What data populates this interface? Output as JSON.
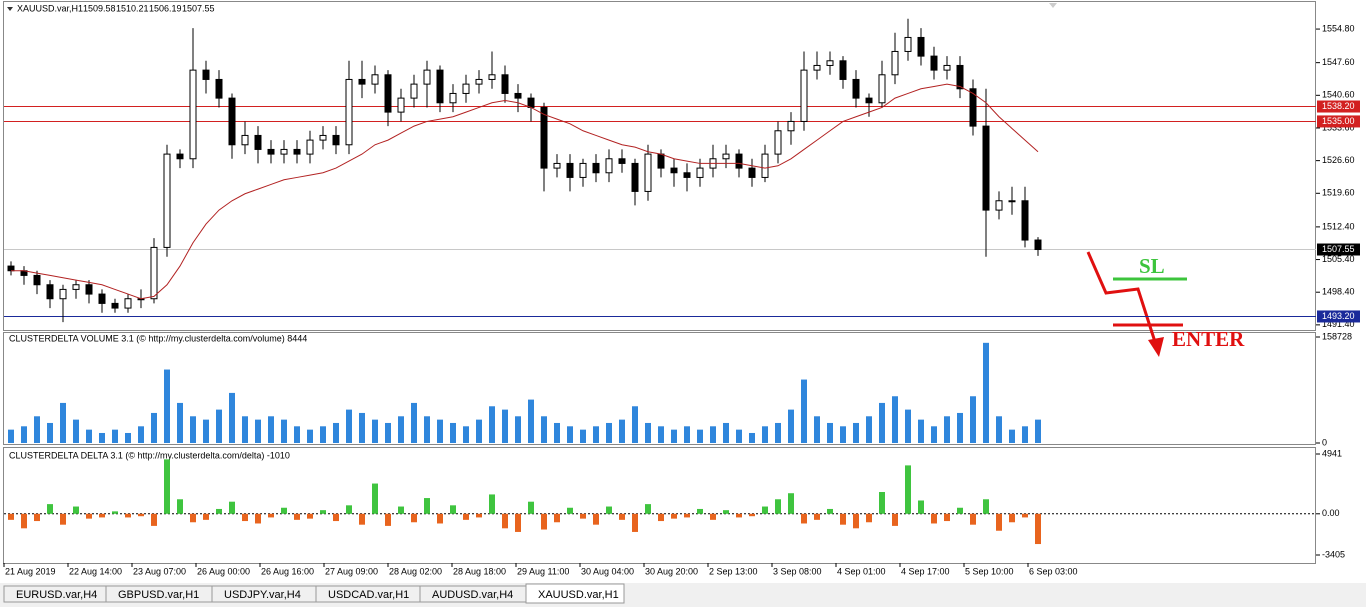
{
  "chart_data": [
    {
      "type": "candlestick",
      "title": "XAUUSD.var,H1",
      "open": [
        1504,
        1503,
        1502,
        1500,
        1497,
        1499,
        1500,
        1498,
        1496,
        1495,
        1497,
        1497,
        1508,
        1528,
        1527,
        1546,
        1544,
        1540,
        1530,
        1532,
        1529,
        1528,
        1529,
        1528,
        1531,
        1532,
        1530,
        1544,
        1543,
        1545,
        1537,
        1540,
        1543,
        1546,
        1539,
        1541,
        1543,
        1544,
        1545,
        1541,
        1540,
        1538,
        1525,
        1526,
        1523,
        1526,
        1524,
        1527,
        1526,
        1520,
        1528,
        1525,
        1524,
        1523,
        1525,
        1527,
        1528,
        1525,
        1523,
        1528,
        1533,
        1535,
        1546,
        1547,
        1548,
        1544,
        1540,
        1539,
        1545,
        1550,
        1553,
        1549,
        1546,
        1547,
        1542,
        1534,
        1516,
        1518,
        1518,
        1509.58
      ],
      "high": [
        1505,
        1504,
        1503,
        1501,
        1500,
        1501,
        1501,
        1499,
        1497,
        1498,
        1499,
        1510,
        1530,
        1529,
        1555,
        1548,
        1546,
        1541,
        1535,
        1534,
        1531,
        1531,
        1531,
        1533,
        1534,
        1534,
        1548,
        1548,
        1547,
        1546,
        1542,
        1545,
        1548,
        1547,
        1543,
        1545,
        1546,
        1550,
        1547,
        1543,
        1541,
        1539,
        1528,
        1528,
        1527,
        1528,
        1529,
        1529,
        1527,
        1530,
        1529,
        1527,
        1526,
        1527,
        1530,
        1530,
        1529,
        1527,
        1530,
        1535,
        1537,
        1550,
        1550,
        1550,
        1549,
        1546,
        1541,
        1548,
        1554,
        1557,
        1555,
        1551,
        1549,
        1549,
        1544,
        1542,
        1520,
        1521,
        1521,
        1510.21
      ],
      "low": [
        1502,
        1500,
        1498,
        1495,
        1492,
        1497,
        1496,
        1494,
        1494,
        1494,
        1495,
        1496,
        1506,
        1525,
        1525,
        1541,
        1538,
        1527,
        1528,
        1526,
        1526,
        1526,
        1526,
        1526,
        1529,
        1528,
        1528,
        1540,
        1541,
        1534,
        1535,
        1538,
        1538,
        1537,
        1537,
        1539,
        1541,
        1542,
        1539,
        1537,
        1535,
        1520,
        1523,
        1520,
        1521,
        1522,
        1522,
        1524,
        1517,
        1518,
        1523,
        1521,
        1520,
        1521,
        1523,
        1525,
        1523,
        1521,
        1522,
        1526,
        1530,
        1533,
        1544,
        1545,
        1542,
        1538,
        1536,
        1538,
        1543,
        1548,
        1547,
        1544,
        1544,
        1540,
        1532,
        1506,
        1514,
        1515,
        1508,
        1506.19
      ],
      "close": [
        1503,
        1502,
        1500,
        1497,
        1499,
        1500,
        1498,
        1496,
        1495,
        1497,
        1497,
        1508,
        1528,
        1527,
        1546,
        1544,
        1540,
        1530,
        1532,
        1529,
        1528,
        1529,
        1528,
        1531,
        1532,
        1530,
        1544,
        1543,
        1545,
        1537,
        1540,
        1543,
        1546,
        1539,
        1541,
        1543,
        1544,
        1545,
        1541,
        1540,
        1538,
        1525,
        1526,
        1523,
        1526,
        1524,
        1527,
        1526,
        1520,
        1528,
        1525,
        1524,
        1523,
        1525,
        1527,
        1528,
        1525,
        1523,
        1528,
        1533,
        1535,
        1546,
        1547,
        1548,
        1544,
        1540,
        1539,
        1545,
        1550,
        1553,
        1549,
        1546,
        1547,
        1542,
        1534,
        1516,
        1518,
        1518,
        1509.58,
        1507.55
      ],
      "ma": [
        1503,
        1503,
        1502.5,
        1502,
        1501.5,
        1501,
        1500.5,
        1500,
        1499,
        1498,
        1497,
        1497.5,
        1500,
        1504,
        1509,
        1513,
        1516,
        1518,
        1519.5,
        1520.5,
        1521.5,
        1522.5,
        1523,
        1523.5,
        1524,
        1525,
        1526.5,
        1528,
        1530,
        1531,
        1532.5,
        1534,
        1535,
        1535.5,
        1536,
        1537,
        1538,
        1539,
        1539.5,
        1539,
        1538,
        1536.5,
        1535.5,
        1534.5,
        1533,
        1532,
        1531,
        1530,
        1529.5,
        1528.5,
        1528,
        1527,
        1526.5,
        1526,
        1526,
        1526,
        1526,
        1525.5,
        1525,
        1525.5,
        1527,
        1529,
        1531,
        1533,
        1535,
        1536,
        1537,
        1538,
        1540,
        1541,
        1542,
        1542.5,
        1543,
        1542.5,
        1541,
        1539,
        1536,
        1533.5,
        1531,
        1528.5
      ],
      "ma_color": "#b22222",
      "ylim": [
        1490.3,
        1560.6
      ],
      "yticks": [
        {
          "value": 1554.8,
          "label": "1554.80"
        },
        {
          "value": 1547.6,
          "label": "1547.60"
        },
        {
          "value": 1540.6,
          "label": "1540.60"
        },
        {
          "value": 1533.6,
          "label": "1533.60"
        },
        {
          "value": 1526.6,
          "label": "1526.60"
        },
        {
          "value": 1519.6,
          "label": "1519.60"
        },
        {
          "value": 1512.4,
          "label": "1512.40"
        },
        {
          "value": 1505.4,
          "label": "1505.40"
        },
        {
          "value": 1498.4,
          "label": "1498.40"
        },
        {
          "value": 1491.4,
          "label": "1491.40"
        }
      ],
      "hlines": [
        {
          "value": 1538.2,
          "label": "1538.20",
          "color": "#d22020"
        },
        {
          "value": 1535,
          "label": "1535.00",
          "color": "#d22020"
        },
        {
          "value": 1493.2,
          "label": "1493.20",
          "color": "#1a2a9a"
        }
      ],
      "x_labels": [
        "21 Aug 2019",
        "22 Aug 14:00",
        "23 Aug 07:00",
        "26 Aug 00:00",
        "26 Aug 16:00",
        "27 Aug 09:00",
        "28 Aug 02:00",
        "28 Aug 18:00",
        "29 Aug 11:00",
        "30 Aug 04:00",
        "30 Aug 20:00",
        "2 Sep 13:00",
        "3 Sep 08:00",
        "4 Sep 01:00",
        "4 Sep 17:00",
        "5 Sep 10:00",
        "6 Sep 03:00"
      ]
    },
    {
      "type": "bar",
      "title": "CLUSTERDELTA VOLUME 3.1 (© http://my.clusterdelta.com/volume) 8444",
      "color": "#2f86dc",
      "values": [
        20000,
        25000,
        40000,
        30000,
        60000,
        35000,
        20000,
        15000,
        20000,
        15000,
        25000,
        45000,
        110000,
        60000,
        40000,
        35000,
        50000,
        75000,
        40000,
        35000,
        40000,
        35000,
        25000,
        20000,
        25000,
        30000,
        50000,
        45000,
        35000,
        30000,
        40000,
        60000,
        40000,
        35000,
        30000,
        25000,
        35000,
        55000,
        50000,
        40000,
        65000,
        40000,
        30000,
        25000,
        20000,
        25000,
        30000,
        35000,
        55000,
        30000,
        25000,
        20000,
        25000,
        20000,
        25000,
        30000,
        20000,
        15000,
        25000,
        30000,
        50000,
        95000,
        40000,
        30000,
        25000,
        30000,
        40000,
        60000,
        70000,
        50000,
        35000,
        25000,
        40000,
        45000,
        70000,
        150000,
        40000,
        20000,
        25000,
        35000
      ],
      "ylim": [
        0,
        158728
      ],
      "yticks": [
        0,
        158728
      ]
    },
    {
      "type": "delta",
      "title": "CLUSTERDELTA DELTA 3.1 (© http://my.clusterdelta.com/delta) -1010",
      "color_up": "#3fc43f",
      "color_down": "#e8641e",
      "values": [
        -500,
        -1200,
        -600,
        800,
        -900,
        600,
        -400,
        -300,
        200,
        -300,
        -200,
        -1000,
        4500,
        1200,
        -700,
        -500,
        400,
        1000,
        -600,
        -800,
        -300,
        500,
        -500,
        -400,
        300,
        -600,
        700,
        -900,
        2500,
        -1000,
        600,
        -700,
        1300,
        -800,
        700,
        -500,
        -300,
        1600,
        -1200,
        -1500,
        1000,
        -1300,
        -700,
        500,
        -400,
        -900,
        600,
        -500,
        -1500,
        800,
        -600,
        -400,
        -300,
        400,
        -500,
        300,
        -300,
        -200,
        600,
        1200,
        1700,
        -800,
        -500,
        400,
        -900,
        -1200,
        -700,
        1800,
        -1000,
        4000,
        1100,
        -800,
        -600,
        500,
        -900,
        1200,
        -1400,
        -700,
        -300,
        -2500
      ],
      "ylim": [
        -3405,
        4941
      ],
      "yticks": [
        4941,
        {
          "value": 0,
          "label": "0.00"
        },
        -3405
      ]
    }
  ],
  "annotations": {
    "sl": "SL",
    "enter": "ENTER"
  },
  "tabs": [
    "EURUSD.var,H4",
    "GBPUSD.var,H1",
    "USDJPY.var,H4",
    "USDCAD.var,H1",
    "AUDUSD.var,H4",
    "XAUUSD.var,H1"
  ]
}
